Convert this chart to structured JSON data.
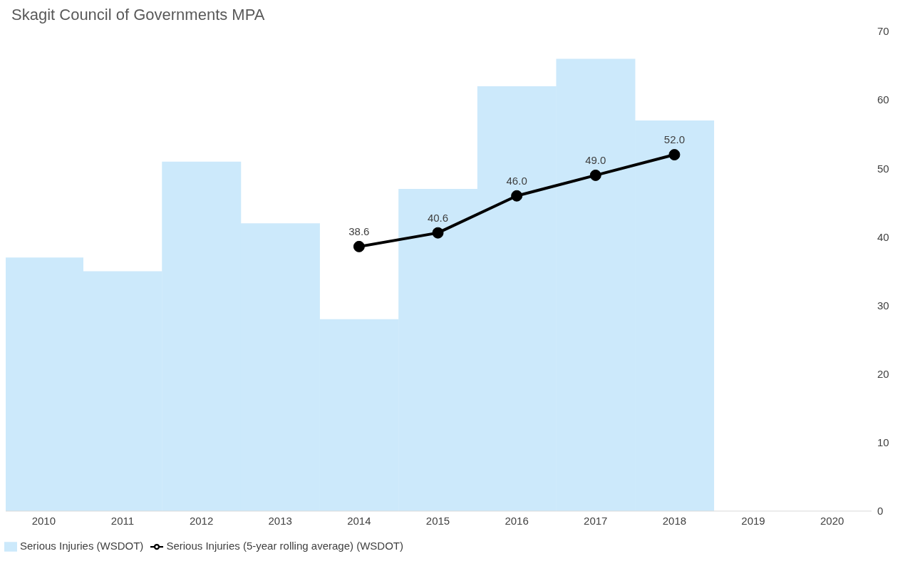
{
  "chart_data": {
    "type": "bar",
    "title": "Skagit Council of Governments MPA",
    "categories": [
      "2010",
      "2011",
      "2012",
      "2013",
      "2014",
      "2015",
      "2016",
      "2017",
      "2018",
      "2019",
      "2020"
    ],
    "series": [
      {
        "name": "Serious Injuries (WSDOT)",
        "color": "#cce9fb",
        "values": [
          37,
          35,
          51,
          42,
          28,
          47,
          62,
          66,
          57,
          null,
          null
        ]
      },
      {
        "name": "Serious Injuries (5-year rolling average) (WSDOT)",
        "type": "line",
        "color": "#000000",
        "values": [
          null,
          null,
          null,
          null,
          38.6,
          40.6,
          46.0,
          49.0,
          52.0,
          null,
          null
        ],
        "value_labels": [
          null,
          null,
          null,
          null,
          "38.6",
          "40.6",
          "46.0",
          "49.0",
          "52.0",
          null,
          null
        ]
      }
    ],
    "ylim": [
      0,
      70
    ],
    "yticks": [
      0,
      10,
      20,
      30,
      40,
      50,
      60,
      70
    ],
    "grid": false,
    "legend": "bottom left",
    "marker": "circle",
    "line_style": "solid"
  }
}
